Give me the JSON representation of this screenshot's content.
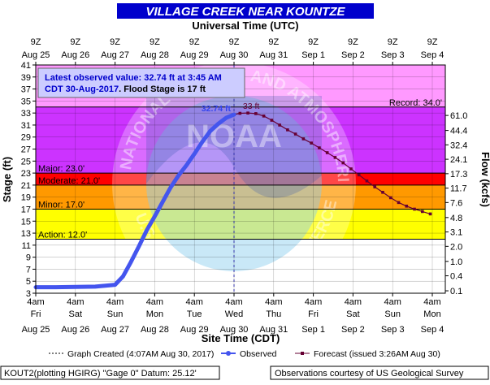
{
  "chart_data": {
    "type": "line",
    "title": "VILLAGE CREEK NEAR KOUNTZE",
    "top_axis_title": "Universal Time (UTC)",
    "top_ticks": [
      {
        "hour": "9Z",
        "date": "Aug 25"
      },
      {
        "hour": "9Z",
        "date": "Aug 26"
      },
      {
        "hour": "9Z",
        "date": "Aug 27"
      },
      {
        "hour": "9Z",
        "date": "Aug 28"
      },
      {
        "hour": "9Z",
        "date": "Aug 29"
      },
      {
        "hour": "9Z",
        "date": "Aug 30"
      },
      {
        "hour": "9Z",
        "date": "Aug 31"
      },
      {
        "hour": "9Z",
        "date": "Sep 1"
      },
      {
        "hour": "9Z",
        "date": "Sep 2"
      },
      {
        "hour": "9Z",
        "date": "Sep 3"
      },
      {
        "hour": "9Z",
        "date": "Sep 4"
      }
    ],
    "bottom_ticks": [
      {
        "time": "4am",
        "day": "Fri",
        "date": "Aug 25"
      },
      {
        "time": "4am",
        "day": "Sat",
        "date": "Aug 26"
      },
      {
        "time": "4am",
        "day": "Sun",
        "date": "Aug 27"
      },
      {
        "time": "4am",
        "day": "Mon",
        "date": "Aug 28"
      },
      {
        "time": "4am",
        "day": "Tue",
        "date": "Aug 29"
      },
      {
        "time": "4am",
        "day": "Wed",
        "date": "Aug 30"
      },
      {
        "time": "4am",
        "day": "Thu",
        "date": "Aug 31"
      },
      {
        "time": "4am",
        "day": "Fri",
        "date": "Sep 1"
      },
      {
        "time": "4am",
        "day": "Sat",
        "date": "Sep 2"
      },
      {
        "time": "4am",
        "day": "Sun",
        "date": "Sep 3"
      },
      {
        "time": "4am",
        "day": "Mon",
        "date": "Sep 4"
      }
    ],
    "xlabel": "Site Time (CDT)",
    "ylabel": "Stage (ft)",
    "y2label": "Flow (kcfs)",
    "ylim": [
      3,
      41
    ],
    "y_ticks": [
      3,
      5,
      7,
      9,
      11,
      13,
      15,
      17,
      19,
      21,
      23,
      25,
      27,
      29,
      31,
      33,
      35,
      37,
      39,
      41
    ],
    "flow_ticks": [
      {
        "stage": 3.4,
        "label": "0.1"
      },
      {
        "stage": 5.9,
        "label": "0.4"
      },
      {
        "stage": 8.3,
        "label": "1.0"
      },
      {
        "stage": 10.8,
        "label": "2.0"
      },
      {
        "stage": 13.2,
        "label": "3.1"
      },
      {
        "stage": 15.6,
        "label": "4.8"
      },
      {
        "stage": 18.1,
        "label": "7.6"
      },
      {
        "stage": 20.5,
        "label": "11.7"
      },
      {
        "stage": 22.9,
        "label": "17.3"
      },
      {
        "stage": 25.3,
        "label": "24.1"
      },
      {
        "stage": 27.7,
        "label": "32.4"
      },
      {
        "stage": 30.1,
        "label": "44.4"
      },
      {
        "stage": 32.6,
        "label": "61.0"
      }
    ],
    "stage_bands": [
      {
        "label": "Action: 12.0'",
        "from": 12,
        "to": 17,
        "color": "#ffff00"
      },
      {
        "label": "Minor: 17.0'",
        "from": 17,
        "to": 21,
        "color": "#ff9900"
      },
      {
        "label": "Moderate: 21.0'",
        "from": 21,
        "to": 23,
        "color": "#ff0000"
      },
      {
        "label": "Major: 23.0'",
        "from": 23,
        "to": 34,
        "color": "#cc33ff"
      },
      {
        "label": "Record: 34.0'",
        "from": 34,
        "to": 41,
        "color": "#ff99ff"
      }
    ],
    "series": [
      {
        "name": "Observed",
        "color": "#4455ee",
        "x": [
          0,
          0.5,
          1.0,
          1.5,
          2.0,
          2.2,
          2.4,
          2.6,
          2.8,
          3.0,
          3.2,
          3.4,
          3.6,
          3.8,
          4.0,
          4.2,
          4.4,
          4.6,
          4.8,
          5.0
        ],
        "y": [
          4.0,
          4.0,
          4.05,
          4.1,
          4.4,
          5.8,
          8.2,
          10.8,
          13.5,
          15.8,
          18.2,
          20.6,
          22.6,
          24.3,
          26.2,
          28.2,
          30.0,
          31.2,
          32.2,
          32.74
        ]
      },
      {
        "name": "Forecast (issued 3:26AM Aug 30)",
        "color": "#660033",
        "x": [
          5.0,
          5.15,
          5.35,
          5.55,
          5.75,
          5.95,
          6.15,
          6.35,
          6.55,
          6.75,
          6.95,
          7.15,
          7.35,
          7.55,
          7.75,
          7.95,
          8.15,
          8.35,
          8.55,
          8.75,
          8.95,
          9.15,
          9.35,
          9.55,
          9.75,
          9.95
        ],
        "y": [
          32.74,
          32.95,
          33.0,
          32.9,
          32.5,
          31.8,
          31.0,
          30.2,
          29.5,
          28.7,
          28.0,
          27.2,
          26.4,
          25.6,
          24.7,
          23.7,
          22.7,
          21.7,
          20.7,
          19.8,
          18.9,
          18.1,
          17.5,
          17.0,
          16.6,
          16.2
        ]
      }
    ],
    "graph_created_x": 5.0,
    "peak_labels": {
      "observed": "32.74 ft",
      "forecast": "33 ft"
    },
    "info_box": {
      "line1": "Latest observed value: 32.74 ft at 3:45 AM",
      "line2a": "CDT 30-Aug-2017",
      "line2b": ". Flood Stage is 17 ft"
    },
    "legend": {
      "created": "Graph Created (4:07AM Aug 30, 2017)",
      "observed": "Observed",
      "forecast": "Forecast (issued 3:26AM Aug 30)"
    },
    "footer": {
      "left": "KOUT2(plotting HGIRG) \"Gage 0\" Datum: 25.12'",
      "right": "Observations courtesy of US Geological Survey"
    },
    "watermark_text": "NATIONAL OCEANIC AND ATMOSPHERIC ADMINISTRATION · U.S. DEPARTMENT OF COMMERCE · NOAA"
  }
}
